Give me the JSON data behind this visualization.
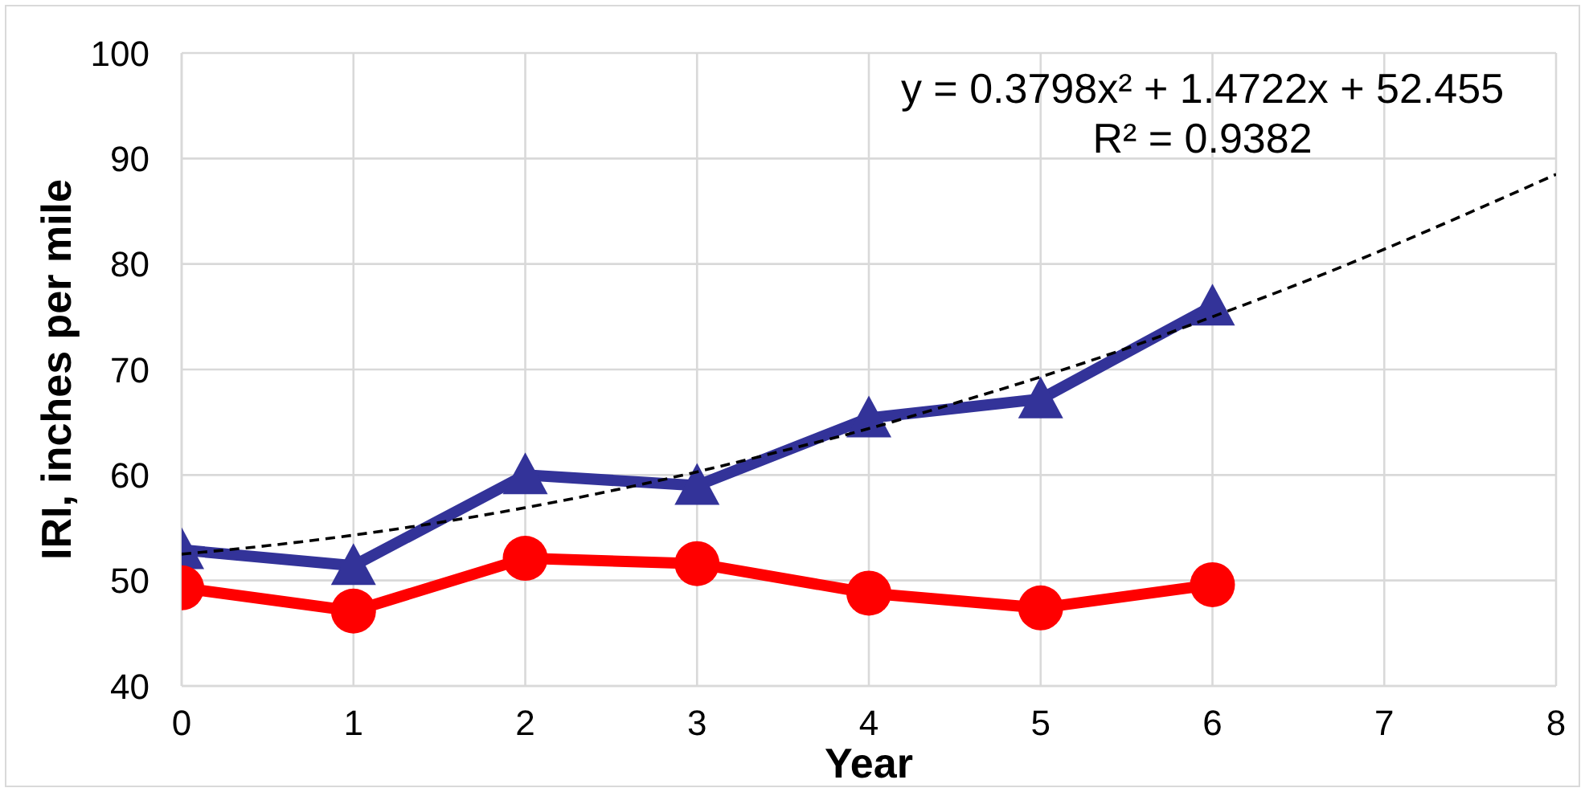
{
  "chart_data": {
    "type": "line",
    "xlabel": "Year",
    "ylabel": "IRI, inches per mile",
    "xlim": [
      0,
      8
    ],
    "xticks": [
      0,
      1,
      2,
      3,
      4,
      5,
      6,
      7,
      8
    ],
    "ylim": [
      40,
      100
    ],
    "yticks": [
      40,
      50,
      60,
      70,
      80,
      90,
      100
    ],
    "grid": true,
    "line_style": "solid",
    "x": [
      0,
      1,
      2,
      3,
      4,
      5,
      6
    ],
    "series": [
      {
        "color": "#333399",
        "marker": "triangle",
        "values": [
          52.9,
          51.4,
          60.0,
          59.0,
          65.4,
          67.2,
          76.0
        ]
      },
      {
        "color": "#ff0000",
        "marker": "circle",
        "values": [
          49.3,
          47.1,
          52.1,
          51.6,
          48.8,
          47.4,
          49.6
        ]
      },
      {
        "type": "line",
        "color": "#000000",
        "marker": "none",
        "line_style": "dashed",
        "x": [
          0,
          0.5,
          1,
          1.5,
          2,
          2.5,
          3,
          3.5,
          4,
          4.5,
          5,
          5.5,
          6,
          6.5,
          7,
          7.5,
          8
        ],
        "values": [
          52.5,
          53.3,
          54.3,
          55.5,
          56.9,
          58.5,
          60.3,
          62.3,
          64.4,
          66.8,
          69.3,
          72.0,
          75.0,
          78.1,
          81.4,
          84.9,
          88.5
        ]
      }
    ],
    "annotations": [
      "y = 0.3798x² + 1.4722x + 52.455",
      "R² = 0.9382"
    ]
  }
}
